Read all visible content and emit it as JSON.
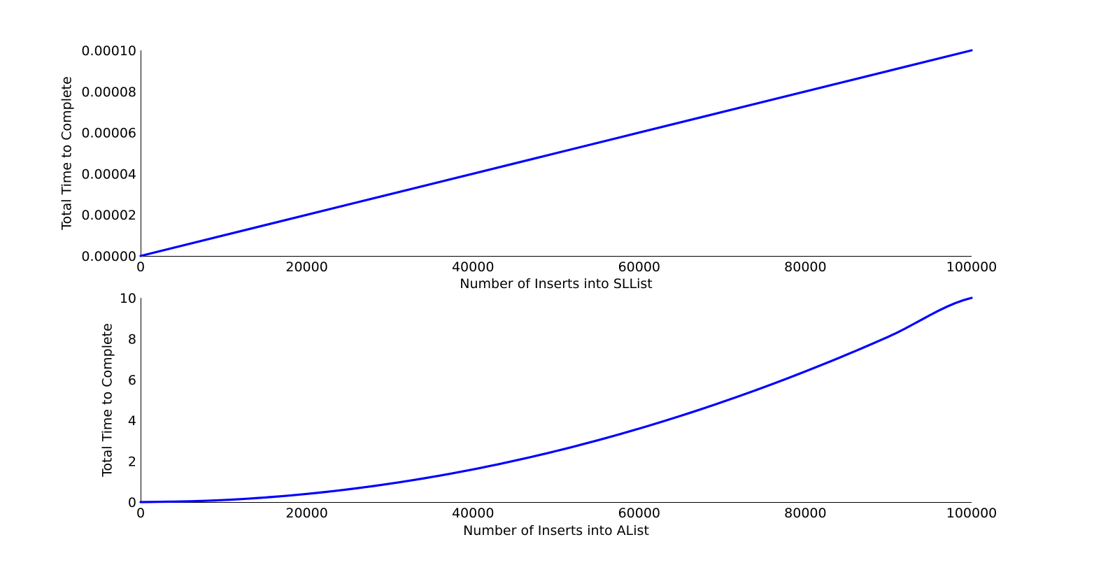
{
  "chart_data": [
    {
      "type": "line",
      "title": "",
      "xlabel": "Number of Inserts into SLList",
      "ylabel": "Total Time to Complete",
      "xlim": [
        0,
        100000
      ],
      "ylim": [
        0,
        0.0001
      ],
      "x_ticks": [
        0,
        20000,
        40000,
        60000,
        80000,
        100000
      ],
      "x_tick_labels": [
        "0",
        "20000",
        "40000",
        "60000",
        "80000",
        "100000"
      ],
      "y_ticks": [
        0,
        2e-05,
        4e-05,
        6e-05,
        8e-05,
        0.0001
      ],
      "y_tick_labels": [
        "0.00000",
        "0.00002",
        "0.00004",
        "0.00006",
        "0.00008",
        "0.00010"
      ],
      "grid": false,
      "legend": "none",
      "series": [
        {
          "color": "#0000ff",
          "x": [
            0,
            10000,
            20000,
            30000,
            40000,
            50000,
            60000,
            70000,
            80000,
            90000,
            100000
          ],
          "y": [
            0,
            1e-05,
            2e-05,
            3e-05,
            4e-05,
            5e-05,
            6e-05,
            7e-05,
            8e-05,
            9e-05,
            0.0001
          ]
        }
      ]
    },
    {
      "type": "line",
      "title": "",
      "xlabel": "Number of Inserts into AList",
      "ylabel": "Total Time to Complete",
      "xlim": [
        0,
        100000
      ],
      "ylim": [
        0,
        10
      ],
      "x_ticks": [
        0,
        20000,
        40000,
        60000,
        80000,
        100000
      ],
      "x_tick_labels": [
        "0",
        "20000",
        "40000",
        "60000",
        "80000",
        "100000"
      ],
      "y_ticks": [
        0,
        2,
        4,
        6,
        8,
        10
      ],
      "y_tick_labels": [
        "0",
        "2",
        "4",
        "6",
        "8",
        "10"
      ],
      "grid": false,
      "legend": "none",
      "series": [
        {
          "color": "#0000ff",
          "x": [
            0,
            10000,
            20000,
            30000,
            40000,
            50000,
            60000,
            70000,
            80000,
            90000,
            100000
          ],
          "y": [
            0,
            0.1,
            0.4,
            0.9,
            1.6,
            2.5,
            3.6,
            4.9,
            6.4,
            8.1,
            10
          ]
        }
      ]
    }
  ]
}
